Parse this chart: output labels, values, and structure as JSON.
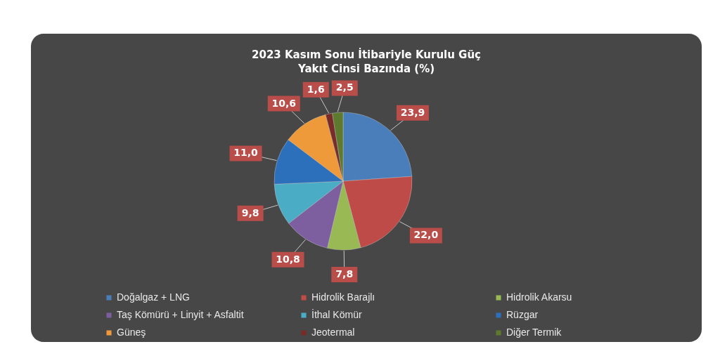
{
  "chart_data": {
    "type": "pie",
    "title": "2023 Kasım Sonu İtibariyle Kurulu Güç\nYakıt Cinsi Bazında (%)",
    "categories": [
      "Doğalgaz + LNG",
      "Hidrolik Barajlı",
      "Hidrolik Akarsu",
      "Taş Kömürü + Linyit + Asfaltit",
      "İthal Kömür",
      "Rüzgar",
      "Güneş",
      "Jeotermal",
      "Diğer Termik"
    ],
    "values": [
      23.9,
      22.0,
      7.8,
      10.8,
      9.8,
      11.0,
      10.6,
      1.6,
      2.5
    ],
    "colors": [
      "#4a7ebb",
      "#be4b48",
      "#98b954",
      "#7d5fa0",
      "#4bacc6",
      "#2c6fbb",
      "#ee9a3a",
      "#772c2a",
      "#5e7a2e"
    ],
    "value_labels": [
      "23,9",
      "22,0",
      "7,8",
      "10,8",
      "9,8",
      "11,0",
      "10,6",
      "1,6",
      "2,5"
    ],
    "legend": "bottom"
  }
}
